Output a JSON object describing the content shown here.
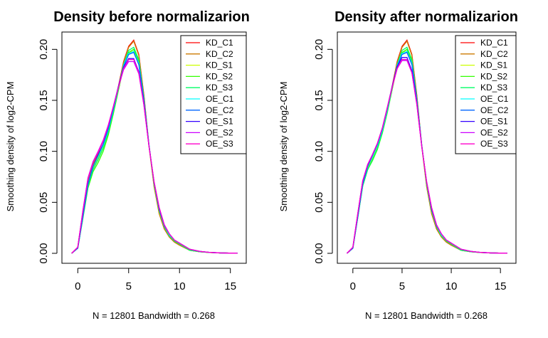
{
  "chart_data": [
    {
      "type": "line",
      "title": "Density before normalizarion",
      "xlabel": "N = 12801   Bandwidth = 0.268",
      "ylabel": "Smoothing density of log2-CPM",
      "xlim": [
        -1,
        16
      ],
      "ylim": [
        0,
        0.21
      ],
      "x_ticks": [
        "0",
        "5",
        "10",
        "15"
      ],
      "y_ticks": [
        "0.00",
        "0.05",
        "0.10",
        "0.15",
        "0.20"
      ],
      "legend_position": "top-right",
      "x": [
        -0.6,
        0,
        0.5,
        1,
        1.5,
        2,
        2.5,
        3,
        3.5,
        4,
        4.5,
        5,
        5.5,
        6,
        6.5,
        7,
        7.5,
        8,
        8.5,
        9,
        9.5,
        10,
        11,
        12,
        13,
        14,
        15.7
      ],
      "series": [
        {
          "name": "KD_C1",
          "color": "#FF0000",
          "values": [
            0.0,
            0.006,
            0.04,
            0.072,
            0.088,
            0.097,
            0.107,
            0.122,
            0.142,
            0.164,
            0.188,
            0.203,
            0.209,
            0.195,
            0.155,
            0.106,
            0.066,
            0.039,
            0.024,
            0.016,
            0.011,
            0.008,
            0.003,
            0.0015,
            0.0008,
            0.0004,
            0.0001
          ]
        },
        {
          "name": "KD_C2",
          "color": "#CC7A00",
          "values": [
            0.0,
            0.006,
            0.039,
            0.071,
            0.087,
            0.096,
            0.106,
            0.121,
            0.141,
            0.163,
            0.187,
            0.202,
            0.208,
            0.194,
            0.154,
            0.105,
            0.065,
            0.039,
            0.024,
            0.016,
            0.011,
            0.008,
            0.003,
            0.0015,
            0.0008,
            0.0004,
            0.0001
          ]
        },
        {
          "name": "KD_S1",
          "color": "#CCFF00",
          "values": [
            0.0,
            0.005,
            0.036,
            0.067,
            0.083,
            0.093,
            0.104,
            0.119,
            0.139,
            0.161,
            0.183,
            0.196,
            0.2,
            0.188,
            0.151,
            0.105,
            0.067,
            0.041,
            0.026,
            0.017,
            0.012,
            0.009,
            0.003,
            0.0016,
            0.0008,
            0.0004,
            0.0001
          ]
        },
        {
          "name": "KD_S2",
          "color": "#33FF00",
          "values": [
            0.0,
            0.005,
            0.034,
            0.064,
            0.08,
            0.089,
            0.1,
            0.116,
            0.137,
            0.16,
            0.183,
            0.197,
            0.2,
            0.188,
            0.151,
            0.106,
            0.068,
            0.042,
            0.027,
            0.018,
            0.012,
            0.009,
            0.003,
            0.0016,
            0.0008,
            0.0004,
            0.0001
          ]
        },
        {
          "name": "KD_S3",
          "color": "#00FF66",
          "values": [
            0.0,
            0.005,
            0.035,
            0.066,
            0.082,
            0.092,
            0.103,
            0.119,
            0.139,
            0.162,
            0.185,
            0.199,
            0.202,
            0.19,
            0.152,
            0.106,
            0.068,
            0.042,
            0.026,
            0.017,
            0.012,
            0.009,
            0.003,
            0.0016,
            0.0008,
            0.0004,
            0.0001
          ]
        },
        {
          "name": "OE_C1",
          "color": "#00FFFF",
          "values": [
            0.0,
            0.005,
            0.036,
            0.068,
            0.085,
            0.095,
            0.106,
            0.121,
            0.141,
            0.163,
            0.184,
            0.196,
            0.198,
            0.186,
            0.15,
            0.106,
            0.069,
            0.043,
            0.027,
            0.018,
            0.013,
            0.01,
            0.004,
            0.0018,
            0.0009,
            0.0004,
            0.0001
          ]
        },
        {
          "name": "OE_C2",
          "color": "#0066FF",
          "values": [
            0.0,
            0.005,
            0.036,
            0.068,
            0.085,
            0.096,
            0.107,
            0.122,
            0.142,
            0.163,
            0.183,
            0.195,
            0.197,
            0.185,
            0.15,
            0.106,
            0.069,
            0.043,
            0.027,
            0.019,
            0.013,
            0.01,
            0.004,
            0.0018,
            0.0009,
            0.0004,
            0.0001
          ]
        },
        {
          "name": "OE_S1",
          "color": "#3300FF",
          "values": [
            0.0,
            0.006,
            0.041,
            0.073,
            0.089,
            0.099,
            0.11,
            0.125,
            0.144,
            0.164,
            0.182,
            0.191,
            0.191,
            0.178,
            0.146,
            0.105,
            0.07,
            0.044,
            0.028,
            0.019,
            0.013,
            0.01,
            0.004,
            0.0019,
            0.0009,
            0.0004,
            0.0001
          ]
        },
        {
          "name": "OE_S2",
          "color": "#CC00FF",
          "values": [
            0.0,
            0.006,
            0.042,
            0.074,
            0.09,
            0.1,
            0.111,
            0.126,
            0.144,
            0.163,
            0.18,
            0.188,
            0.188,
            0.176,
            0.145,
            0.105,
            0.07,
            0.045,
            0.028,
            0.019,
            0.013,
            0.01,
            0.004,
            0.0019,
            0.0009,
            0.0004,
            0.0001
          ]
        },
        {
          "name": "OE_S3",
          "color": "#FF00CC",
          "values": [
            0.0,
            0.006,
            0.041,
            0.073,
            0.089,
            0.099,
            0.11,
            0.125,
            0.144,
            0.163,
            0.181,
            0.19,
            0.19,
            0.177,
            0.146,
            0.105,
            0.07,
            0.045,
            0.028,
            0.019,
            0.013,
            0.01,
            0.004,
            0.0019,
            0.0009,
            0.0004,
            0.0001
          ]
        }
      ]
    },
    {
      "type": "line",
      "title": "Density after normalizarion",
      "xlabel": "N = 12801   Bandwidth = 0.268",
      "ylabel": "Smoothing density of log2-CPM",
      "xlim": [
        -1,
        16
      ],
      "ylim": [
        0,
        0.21
      ],
      "x_ticks": [
        "0",
        "5",
        "10",
        "15"
      ],
      "y_ticks": [
        "0.00",
        "0.05",
        "0.10",
        "0.15",
        "0.20"
      ],
      "legend_position": "top-right",
      "x": [
        -0.6,
        0,
        0.5,
        1,
        1.5,
        2,
        2.5,
        3,
        3.5,
        4,
        4.5,
        5,
        5.5,
        6,
        6.5,
        7,
        7.5,
        8,
        8.5,
        9,
        9.5,
        10,
        11,
        12,
        13,
        14,
        15.7
      ],
      "series": [
        {
          "name": "KD_C1",
          "color": "#FF0000",
          "values": [
            0.0,
            0.005,
            0.037,
            0.069,
            0.085,
            0.095,
            0.106,
            0.121,
            0.141,
            0.164,
            0.188,
            0.203,
            0.209,
            0.195,
            0.155,
            0.106,
            0.066,
            0.039,
            0.024,
            0.016,
            0.011,
            0.008,
            0.003,
            0.0015,
            0.0008,
            0.0004,
            0.0001
          ]
        },
        {
          "name": "KD_C2",
          "color": "#CC7A00",
          "values": [
            0.0,
            0.005,
            0.036,
            0.068,
            0.084,
            0.094,
            0.105,
            0.12,
            0.14,
            0.163,
            0.187,
            0.202,
            0.208,
            0.194,
            0.154,
            0.105,
            0.065,
            0.039,
            0.024,
            0.016,
            0.011,
            0.008,
            0.003,
            0.0015,
            0.0008,
            0.0004,
            0.0001
          ]
        },
        {
          "name": "KD_S1",
          "color": "#CCFF00",
          "values": [
            0.0,
            0.005,
            0.036,
            0.067,
            0.083,
            0.093,
            0.104,
            0.119,
            0.139,
            0.161,
            0.183,
            0.196,
            0.2,
            0.188,
            0.151,
            0.105,
            0.067,
            0.041,
            0.026,
            0.017,
            0.012,
            0.009,
            0.003,
            0.0016,
            0.0008,
            0.0004,
            0.0001
          ]
        },
        {
          "name": "KD_S2",
          "color": "#33FF00",
          "values": [
            0.0,
            0.005,
            0.035,
            0.066,
            0.082,
            0.091,
            0.102,
            0.118,
            0.138,
            0.161,
            0.184,
            0.197,
            0.2,
            0.188,
            0.151,
            0.106,
            0.068,
            0.042,
            0.027,
            0.018,
            0.012,
            0.009,
            0.003,
            0.0016,
            0.0008,
            0.0004,
            0.0001
          ]
        },
        {
          "name": "KD_S3",
          "color": "#00FF66",
          "values": [
            0.0,
            0.005,
            0.035,
            0.066,
            0.082,
            0.092,
            0.103,
            0.119,
            0.139,
            0.162,
            0.185,
            0.199,
            0.202,
            0.19,
            0.152,
            0.106,
            0.068,
            0.042,
            0.026,
            0.017,
            0.012,
            0.009,
            0.003,
            0.0016,
            0.0008,
            0.0004,
            0.0001
          ]
        },
        {
          "name": "OE_C1",
          "color": "#00FFFF",
          "values": [
            0.0,
            0.005,
            0.036,
            0.068,
            0.085,
            0.095,
            0.106,
            0.121,
            0.141,
            0.163,
            0.184,
            0.196,
            0.198,
            0.186,
            0.15,
            0.106,
            0.069,
            0.043,
            0.027,
            0.018,
            0.013,
            0.01,
            0.004,
            0.0018,
            0.0009,
            0.0004,
            0.0001
          ]
        },
        {
          "name": "OE_C2",
          "color": "#0066FF",
          "values": [
            0.0,
            0.005,
            0.036,
            0.068,
            0.085,
            0.096,
            0.107,
            0.122,
            0.142,
            0.163,
            0.183,
            0.195,
            0.197,
            0.185,
            0.15,
            0.106,
            0.069,
            0.043,
            0.027,
            0.019,
            0.013,
            0.01,
            0.004,
            0.0018,
            0.0009,
            0.0004,
            0.0001
          ]
        },
        {
          "name": "OE_S1",
          "color": "#3300FF",
          "values": [
            0.0,
            0.006,
            0.039,
            0.071,
            0.087,
            0.097,
            0.108,
            0.123,
            0.143,
            0.164,
            0.183,
            0.192,
            0.192,
            0.179,
            0.147,
            0.105,
            0.07,
            0.044,
            0.028,
            0.019,
            0.013,
            0.01,
            0.004,
            0.0019,
            0.0009,
            0.0004,
            0.0001
          ]
        },
        {
          "name": "OE_S2",
          "color": "#CC00FF",
          "values": [
            0.0,
            0.006,
            0.039,
            0.071,
            0.087,
            0.097,
            0.108,
            0.123,
            0.143,
            0.163,
            0.181,
            0.189,
            0.189,
            0.177,
            0.146,
            0.105,
            0.07,
            0.045,
            0.028,
            0.019,
            0.013,
            0.01,
            0.004,
            0.0019,
            0.0009,
            0.0004,
            0.0001
          ]
        },
        {
          "name": "OE_S3",
          "color": "#FF00CC",
          "values": [
            0.0,
            0.006,
            0.039,
            0.071,
            0.087,
            0.097,
            0.108,
            0.123,
            0.143,
            0.163,
            0.181,
            0.19,
            0.19,
            0.177,
            0.146,
            0.105,
            0.07,
            0.045,
            0.028,
            0.019,
            0.013,
            0.01,
            0.004,
            0.0019,
            0.0009,
            0.0004,
            0.0001
          ]
        }
      ]
    }
  ]
}
